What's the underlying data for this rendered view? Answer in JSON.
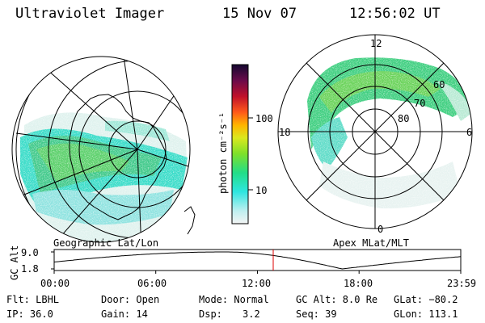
{
  "header": {
    "title": "Ultraviolet Imager",
    "date": "15 Nov 07",
    "time": "12:56:02 UT"
  },
  "left_map": {
    "caption": "Geographic Lat/Lon"
  },
  "right_map": {
    "caption": "Apex MLat/MLT",
    "mlt_labels": {
      "top": "12",
      "left": "18",
      "right": "6",
      "bottom": "0"
    },
    "lat_labels": [
      "60",
      "70",
      "80"
    ]
  },
  "colorbar": {
    "label": "photon cm⁻²s⁻¹",
    "ticks": [
      "100",
      "10"
    ]
  },
  "altitude_plot": {
    "ylabel": "GC Alt",
    "ymax": "9.0",
    "ymin": "1.8",
    "x_ticks": [
      "00:00",
      "06:00",
      "12:00",
      "18:00",
      "23:59"
    ],
    "current_time_hours": 12.93
  },
  "info": {
    "flt": "Flt: LBHL",
    "door": "Door: Open",
    "mode": "Mode: Normal",
    "gc_alt": "GC Alt: 8.0 Re",
    "glat": "GLat: −80.2",
    "ip": "IP: 36.0",
    "gain": "Gain: 14",
    "dsp_label": "Dsp:",
    "dsp_value": "3.2",
    "seq": "Seq: 39",
    "glon": "GLon: 113.1"
  }
}
